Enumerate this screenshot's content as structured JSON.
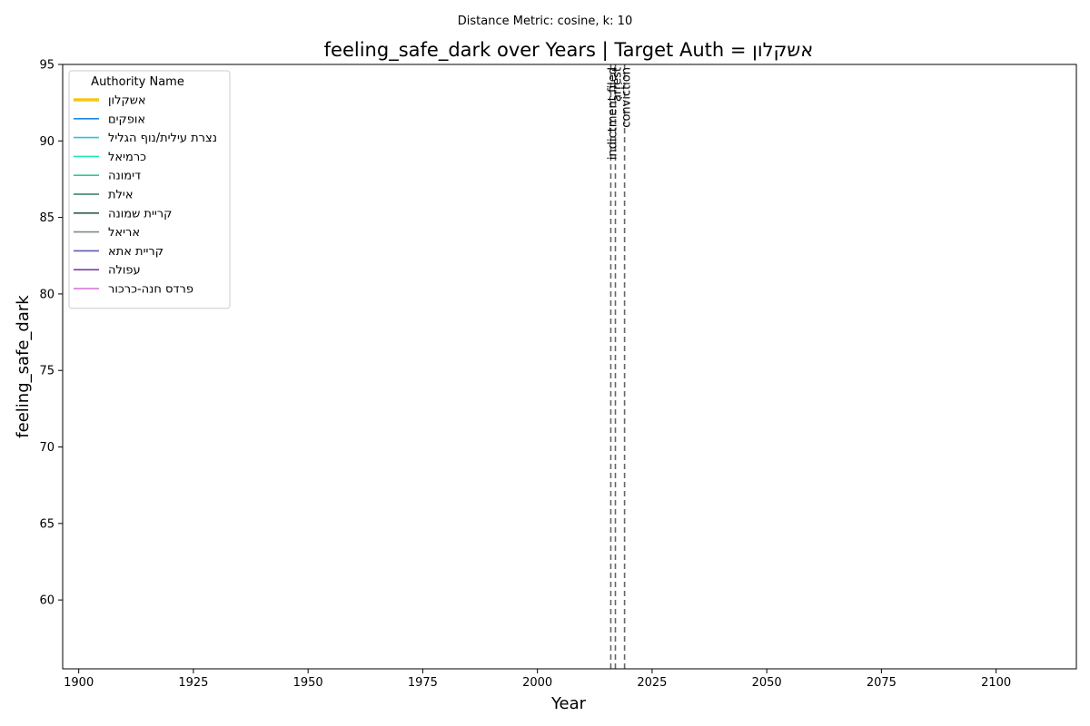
{
  "chart_data": {
    "type": "line",
    "suptitle": "Distance Metric: cosine, k: 10",
    "title": "feeling_safe_dark over Years | Target Auth = אשקלון",
    "xlabel": "Year",
    "ylabel": "feeling_safe_dark",
    "xlim": [
      1896.5,
      2117.5
    ],
    "ylim": [
      55.5,
      95
    ],
    "xticks": [
      1900,
      1925,
      1950,
      1975,
      2000,
      2025,
      2050,
      2075,
      2100
    ],
    "yticks": [
      60,
      65,
      70,
      75,
      80,
      85,
      90,
      95
    ],
    "grid": false,
    "legend": {
      "title": "Authority Name",
      "placement": "top-left",
      "entries": [
        {
          "name": "אשקלון",
          "color": "#f5c518",
          "target": true
        },
        {
          "name": "אופקים",
          "color": "#1e88e5",
          "target": false
        },
        {
          "name": "נצרת עילית/נוף הגליל",
          "color": "#26c6da",
          "target": false
        },
        {
          "name": "כרמיאל",
          "color": "#1de9b6",
          "target": false
        },
        {
          "name": "דימונה",
          "color": "#2ecc8f",
          "target": false
        },
        {
          "name": "אילת",
          "color": "#2e7d5b",
          "target": false
        },
        {
          "name": "קריית שמונה",
          "color": "#2f5d4e",
          "target": false
        },
        {
          "name": "אריאל",
          "color": "#7d8c84",
          "target": false
        },
        {
          "name": "קריית אתא",
          "color": "#5c5bb0",
          "target": false
        },
        {
          "name": "עפולה",
          "color": "#7b3fa0",
          "target": false
        },
        {
          "name": "פרדס חנה-כרכור",
          "color": "#d46fd6",
          "target": false
        }
      ]
    },
    "series": [],
    "events": [
      {
        "year": 2016,
        "label": "indictment filed"
      },
      {
        "year": 2017,
        "label": "arrest"
      },
      {
        "year": 2019,
        "label": "conviction"
      }
    ],
    "event_line_color": "#666666"
  }
}
